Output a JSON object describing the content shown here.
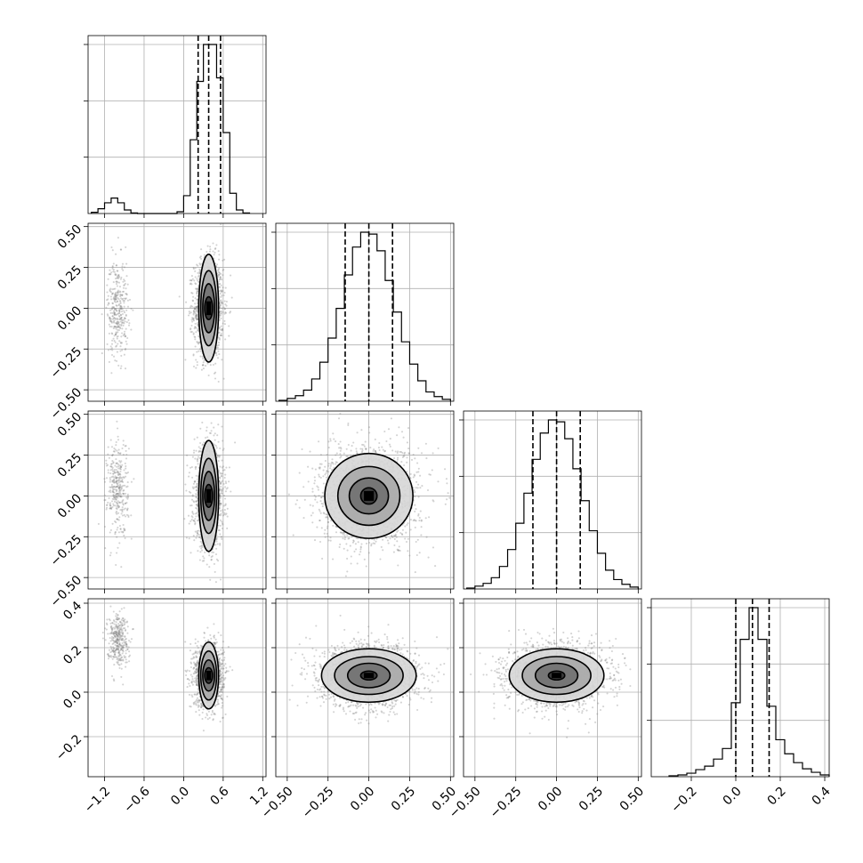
{
  "chart_data": {
    "type": "corner",
    "variables": [
      {
        "range": [
          -1.45,
          1.25
        ],
        "ticks": [
          -1.2,
          -0.6,
          0.0,
          0.6,
          1.2
        ],
        "tick_labels": [
          "−1.2",
          "−0.6",
          "0.0",
          "0.6",
          "1.2"
        ]
      },
      {
        "range": [
          -0.57,
          0.52
        ],
        "ticks": [
          -0.5,
          -0.25,
          0.0,
          0.25,
          0.5
        ],
        "tick_labels": [
          "−0.50",
          "−0.25",
          "0.00",
          "0.25",
          "0.50"
        ]
      },
      {
        "range": [
          -0.57,
          0.52
        ],
        "ticks": [
          -0.5,
          -0.25,
          0.0,
          0.25,
          0.5
        ],
        "tick_labels": [
          "−0.50",
          "−0.25",
          "0.00",
          "0.25",
          "0.50"
        ]
      },
      {
        "range": [
          -0.38,
          0.42
        ],
        "ticks": [
          -0.2,
          0.0,
          0.2,
          0.4
        ],
        "tick_labels": [
          "−0.2",
          "0.0",
          "0.2",
          "0.4"
        ]
      }
    ],
    "histograms": [
      {
        "variable": 0,
        "quantiles": [
          0.22,
          0.38,
          0.56
        ],
        "bins": [
          {
            "x0": -1.4,
            "x1": -1.3,
            "count": 2
          },
          {
            "x0": -1.3,
            "x1": -1.2,
            "count": 8
          },
          {
            "x0": -1.2,
            "x1": -1.1,
            "count": 18
          },
          {
            "x0": -1.1,
            "x1": -1.0,
            "count": 26
          },
          {
            "x0": -1.0,
            "x1": -0.9,
            "count": 18
          },
          {
            "x0": -0.9,
            "x1": -0.8,
            "count": 6
          },
          {
            "x0": -0.8,
            "x1": -0.7,
            "count": 1
          },
          {
            "x0": -0.7,
            "x1": -0.6,
            "count": 0
          },
          {
            "x0": -0.6,
            "x1": -0.5,
            "count": 0
          },
          {
            "x0": -0.5,
            "x1": -0.4,
            "count": 0
          },
          {
            "x0": -0.4,
            "x1": -0.3,
            "count": 0
          },
          {
            "x0": -0.3,
            "x1": -0.2,
            "count": 0
          },
          {
            "x0": -0.2,
            "x1": -0.1,
            "count": 0
          },
          {
            "x0": -0.1,
            "x1": 0.0,
            "count": 3
          },
          {
            "x0": 0.0,
            "x1": 0.1,
            "count": 30
          },
          {
            "x0": 0.1,
            "x1": 0.2,
            "count": 124
          },
          {
            "x0": 0.2,
            "x1": 0.3,
            "count": 222
          },
          {
            "x0": 0.3,
            "x1": 0.4,
            "count": 284
          },
          {
            "x0": 0.4,
            "x1": 0.5,
            "count": 284
          },
          {
            "x0": 0.5,
            "x1": 0.6,
            "count": 228
          },
          {
            "x0": 0.6,
            "x1": 0.7,
            "count": 136
          },
          {
            "x0": 0.7,
            "x1": 0.8,
            "count": 34
          },
          {
            "x0": 0.8,
            "x1": 0.9,
            "count": 6
          },
          {
            "x0": 0.9,
            "x1": 1.0,
            "count": 1
          }
        ]
      },
      {
        "variable": 1,
        "quantiles": [
          -0.145,
          0.0,
          0.145
        ],
        "bins": [
          {
            "x0": -0.55,
            "x1": -0.5,
            "count": 1
          },
          {
            "x0": -0.5,
            "x1": -0.45,
            "count": 3
          },
          {
            "x0": -0.45,
            "x1": -0.4,
            "count": 6
          },
          {
            "x0": -0.4,
            "x1": -0.35,
            "count": 12
          },
          {
            "x0": -0.35,
            "x1": -0.3,
            "count": 24
          },
          {
            "x0": -0.3,
            "x1": -0.25,
            "count": 42
          },
          {
            "x0": -0.25,
            "x1": -0.2,
            "count": 68
          },
          {
            "x0": -0.2,
            "x1": -0.15,
            "count": 100
          },
          {
            "x0": -0.15,
            "x1": -0.1,
            "count": 136
          },
          {
            "x0": -0.1,
            "x1": -0.05,
            "count": 166
          },
          {
            "x0": -0.05,
            "x1": 0.0,
            "count": 182
          },
          {
            "x0": 0.0,
            "x1": 0.05,
            "count": 180
          },
          {
            "x0": 0.05,
            "x1": 0.1,
            "count": 162
          },
          {
            "x0": 0.1,
            "x1": 0.15,
            "count": 130
          },
          {
            "x0": 0.15,
            "x1": 0.2,
            "count": 96
          },
          {
            "x0": 0.2,
            "x1": 0.25,
            "count": 64
          },
          {
            "x0": 0.25,
            "x1": 0.3,
            "count": 40
          },
          {
            "x0": 0.3,
            "x1": 0.35,
            "count": 22
          },
          {
            "x0": 0.35,
            "x1": 0.4,
            "count": 10
          },
          {
            "x0": 0.4,
            "x1": 0.45,
            "count": 5
          },
          {
            "x0": 0.45,
            "x1": 0.5,
            "count": 2
          }
        ]
      },
      {
        "variable": 2,
        "quantiles": [
          -0.145,
          0.0,
          0.145
        ],
        "bins": [
          {
            "x0": -0.55,
            "x1": -0.5,
            "count": 1
          },
          {
            "x0": -0.5,
            "x1": -0.45,
            "count": 3
          },
          {
            "x0": -0.45,
            "x1": -0.4,
            "count": 6
          },
          {
            "x0": -0.4,
            "x1": -0.35,
            "count": 12
          },
          {
            "x0": -0.35,
            "x1": -0.3,
            "count": 24
          },
          {
            "x0": -0.3,
            "x1": -0.25,
            "count": 42
          },
          {
            "x0": -0.25,
            "x1": -0.2,
            "count": 70
          },
          {
            "x0": -0.2,
            "x1": -0.15,
            "count": 102
          },
          {
            "x0": -0.15,
            "x1": -0.1,
            "count": 138
          },
          {
            "x0": -0.1,
            "x1": -0.05,
            "count": 166
          },
          {
            "x0": -0.05,
            "x1": 0.0,
            "count": 180
          },
          {
            "x0": 0.0,
            "x1": 0.05,
            "count": 178
          },
          {
            "x0": 0.05,
            "x1": 0.1,
            "count": 160
          },
          {
            "x0": 0.1,
            "x1": 0.15,
            "count": 128
          },
          {
            "x0": 0.15,
            "x1": 0.2,
            "count": 94
          },
          {
            "x0": 0.2,
            "x1": 0.25,
            "count": 62
          },
          {
            "x0": 0.25,
            "x1": 0.3,
            "count": 38
          },
          {
            "x0": 0.3,
            "x1": 0.35,
            "count": 20
          },
          {
            "x0": 0.35,
            "x1": 0.4,
            "count": 10
          },
          {
            "x0": 0.4,
            "x1": 0.45,
            "count": 5
          },
          {
            "x0": 0.45,
            "x1": 0.5,
            "count": 2
          }
        ]
      },
      {
        "variable": 3,
        "quantiles": [
          0.0,
          0.075,
          0.15
        ],
        "bins": [
          {
            "x0": -0.3,
            "x1": -0.26,
            "count": 1
          },
          {
            "x0": -0.26,
            "x1": -0.22,
            "count": 2
          },
          {
            "x0": -0.22,
            "x1": -0.18,
            "count": 4
          },
          {
            "x0": -0.18,
            "x1": -0.14,
            "count": 8
          },
          {
            "x0": -0.14,
            "x1": -0.1,
            "count": 12
          },
          {
            "x0": -0.1,
            "x1": -0.06,
            "count": 20
          },
          {
            "x0": -0.06,
            "x1": -0.02,
            "count": 32
          },
          {
            "x0": -0.02,
            "x1": 0.02,
            "count": 84
          },
          {
            "x0": 0.02,
            "x1": 0.06,
            "count": 156
          },
          {
            "x0": 0.06,
            "x1": 0.1,
            "count": 192
          },
          {
            "x0": 0.1,
            "x1": 0.14,
            "count": 156
          },
          {
            "x0": 0.14,
            "x1": 0.18,
            "count": 80
          },
          {
            "x0": 0.18,
            "x1": 0.22,
            "count": 42
          },
          {
            "x0": 0.22,
            "x1": 0.26,
            "count": 26
          },
          {
            "x0": 0.26,
            "x1": 0.3,
            "count": 16
          },
          {
            "x0": 0.3,
            "x1": 0.34,
            "count": 9
          },
          {
            "x0": 0.34,
            "x1": 0.38,
            "count": 5
          },
          {
            "x0": 0.38,
            "x1": 0.42,
            "count": 2
          }
        ]
      }
    ],
    "scatter_clusters": [
      {
        "row": 1,
        "col": 0,
        "mean": [
          0.38,
          0.0
        ],
        "sd": [
          0.11,
          0.15
        ],
        "points": 1500
      },
      {
        "row": 1,
        "col": 0,
        "mean": [
          -1.0,
          0.0
        ],
        "sd": [
          0.08,
          0.15
        ],
        "points": 350
      },
      {
        "row": 2,
        "col": 0,
        "mean": [
          0.38,
          0.0
        ],
        "sd": [
          0.11,
          0.15
        ],
        "points": 1500
      },
      {
        "row": 2,
        "col": 0,
        "mean": [
          -1.0,
          0.05
        ],
        "sd": [
          0.08,
          0.15
        ],
        "points": 350
      },
      {
        "row": 3,
        "col": 0,
        "mean": [
          0.38,
          0.075
        ],
        "sd": [
          0.11,
          0.07
        ],
        "points": 1500
      },
      {
        "row": 3,
        "col": 0,
        "mean": [
          -1.0,
          0.24
        ],
        "sd": [
          0.08,
          0.06
        ],
        "points": 350
      },
      {
        "row": 2,
        "col": 1,
        "mean": [
          0.0,
          0.0
        ],
        "sd": [
          0.15,
          0.15
        ],
        "points": 2000
      },
      {
        "row": 3,
        "col": 1,
        "mean": [
          0.0,
          0.075
        ],
        "sd": [
          0.15,
          0.07
        ],
        "points": 2000
      },
      {
        "row": 3,
        "col": 2,
        "mean": [
          0.0,
          0.075
        ],
        "sd": [
          0.15,
          0.07
        ],
        "points": 2000
      }
    ],
    "contours": [
      {
        "row": 1,
        "col": 0,
        "center": [
          0.38,
          0.0
        ],
        "radii": [
          [
            0.06,
            0.07
          ],
          [
            0.09,
            0.15
          ],
          [
            0.12,
            0.23
          ],
          [
            0.15,
            0.33
          ]
        ]
      },
      {
        "row": 2,
        "col": 0,
        "center": [
          0.38,
          0.0
        ],
        "radii": [
          [
            0.06,
            0.07
          ],
          [
            0.09,
            0.15
          ],
          [
            0.12,
            0.23
          ],
          [
            0.15,
            0.34
          ]
        ]
      },
      {
        "row": 3,
        "col": 0,
        "center": [
          0.38,
          0.075
        ],
        "radii": [
          [
            0.06,
            0.035
          ],
          [
            0.09,
            0.07
          ],
          [
            0.12,
            0.11
          ],
          [
            0.15,
            0.15
          ]
        ]
      },
      {
        "row": 2,
        "col": 1,
        "center": [
          0.0,
          0.0
        ],
        "radii": [
          [
            0.05,
            0.05
          ],
          [
            0.12,
            0.11
          ],
          [
            0.19,
            0.18
          ],
          [
            0.27,
            0.26
          ]
        ]
      },
      {
        "row": 3,
        "col": 1,
        "center": [
          0.0,
          0.075
        ],
        "radii": [
          [
            0.05,
            0.02
          ],
          [
            0.13,
            0.055
          ],
          [
            0.21,
            0.085
          ],
          [
            0.29,
            0.12
          ]
        ]
      },
      {
        "row": 3,
        "col": 2,
        "center": [
          0.0,
          0.075
        ],
        "radii": [
          [
            0.05,
            0.02
          ],
          [
            0.13,
            0.055
          ],
          [
            0.21,
            0.085
          ],
          [
            0.29,
            0.12
          ]
        ]
      }
    ],
    "grid": true,
    "colors": {
      "points": "#808080",
      "lines": "#000000",
      "density_dark": "#000000",
      "grid": "#b0b0b0"
    }
  }
}
